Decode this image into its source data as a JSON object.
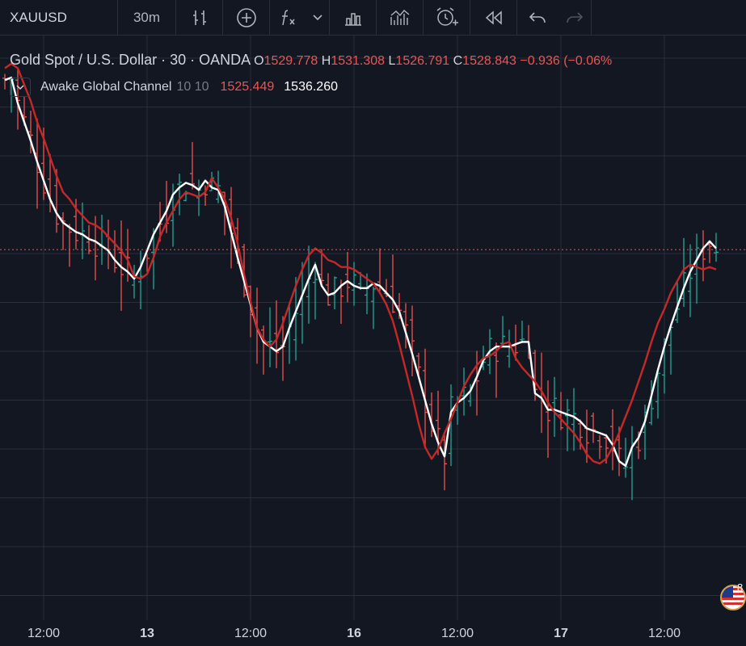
{
  "toolbar": {
    "symbol": "XAUUSD",
    "interval": "30m"
  },
  "legend": {
    "title": "Gold Spot / U.S. Dollar · 30 · OANDA",
    "o_label": "O",
    "o_value": "1529.778",
    "h_label": "H",
    "h_value": "1531.308",
    "l_label": "L",
    "l_value": "1526.791",
    "c_label": "C",
    "c_value": "1528.843",
    "change": "−0.936 (−0.06%"
  },
  "indicator": {
    "name": "Awake Global Channel",
    "params": "10 10",
    "low_value": "1525.449",
    "high_value": "1536.260"
  },
  "flag_badge": "8",
  "colors": {
    "background": "#131722",
    "grid": "#2a2e39",
    "up": "#26a69a",
    "down": "#ef5350",
    "channel": "#c62828",
    "mid": "#ffffff"
  },
  "chart_data": {
    "type": "line",
    "title": "Gold Spot / U.S. Dollar · 30 · OANDA",
    "xlabel": "",
    "ylabel": "",
    "x_ticks": [
      "12:00",
      "13",
      "12:00",
      "16",
      "12:00",
      "17",
      "12:00"
    ],
    "x_tick_index": [
      6,
      22,
      38,
      54,
      70,
      86,
      102
    ],
    "last_close": 1528.843,
    "y_range": [
      1513.0,
      1538.0
    ],
    "grid": true,
    "bar_count": 111,
    "series": [
      {
        "name": "Awake Global Channel",
        "role": "mid",
        "values": [
          1536.1,
          1536.2,
          1535.1,
          1534.3,
          1533.5,
          1532.6,
          1531.8,
          1531.0,
          1530.4,
          1530.0,
          1529.8,
          1529.6,
          1529.5,
          1529.3,
          1529.2,
          1529.0,
          1528.8,
          1528.4,
          1528.1,
          1527.9,
          1527.6,
          1528.1,
          1528.8,
          1529.5,
          1530.0,
          1530.5,
          1531.2,
          1531.5,
          1531.7,
          1531.6,
          1531.4,
          1531.8,
          1531.5,
          1531.4,
          1530.7,
          1529.6,
          1528.5,
          1527.5,
          1526.5,
          1525.5,
          1524.9,
          1524.7,
          1524.5,
          1524.7,
          1525.5,
          1526.2,
          1526.9,
          1527.6,
          1528.2,
          1527.3,
          1526.9,
          1527.0,
          1527.3,
          1527.5,
          1527.3,
          1527.2,
          1527.2,
          1527.4,
          1527.3,
          1527.0,
          1526.7,
          1526.2,
          1525.3,
          1524.4,
          1523.4,
          1522.4,
          1521.4,
          1520.6,
          1520.0,
          1521.9,
          1522.3,
          1522.5,
          1522.8,
          1523.4,
          1524.1,
          1524.5,
          1524.7,
          1524.7,
          1524.7,
          1524.8,
          1524.9,
          1524.9,
          1522.7,
          1522.5,
          1522.0,
          1522.0,
          1521.9,
          1521.8,
          1521.7,
          1521.5,
          1521.2,
          1521.1,
          1521.0,
          1520.9,
          1520.5,
          1519.8,
          1519.6,
          1520.4,
          1520.8,
          1521.5,
          1522.6,
          1523.7,
          1524.7,
          1525.6,
          1526.4,
          1527.2,
          1527.9,
          1528.4,
          1528.9,
          1529.2,
          1528.9
        ]
      },
      {
        "name": "Awake Global Channel",
        "role": "high",
        "values": [
          1536.6,
          1536.8,
          1536.6,
          1535.9,
          1535.2,
          1534.3,
          1533.6,
          1532.8,
          1532.0,
          1531.3,
          1531.0,
          1530.6,
          1530.3,
          1530.0,
          1529.9,
          1529.7,
          1529.4,
          1529.1,
          1528.8,
          1528.4,
          1527.7,
          1527.6,
          1527.8,
          1528.5,
          1529.4,
          1530.0,
          1530.5,
          1531.0,
          1531.3,
          1531.2,
          1531.1,
          1531.3,
          1531.9,
          1531.5,
          1531.0,
          1530.2,
          1529.1,
          1527.8,
          1526.6,
          1525.5,
          1525.0,
          1524.7,
          1525.0,
          1525.7,
          1526.5,
          1527.3,
          1528.0,
          1528.6,
          1528.9,
          1528.7,
          1528.4,
          1528.3,
          1528.1,
          1528.1,
          1528.0,
          1527.8,
          1527.6,
          1527.4,
          1527.0,
          1526.5,
          1525.8,
          1524.8,
          1523.7,
          1522.6,
          1521.4,
          1520.4,
          1519.9,
          1520.3,
          1521.0,
          1521.6,
          1522.3,
          1523.0,
          1523.5,
          1523.9,
          1524.2,
          1524.3,
          1524.5,
          1524.8,
          1524.9,
          1524.2,
          1523.8,
          1523.5,
          1523.2,
          1522.8,
          1522.3,
          1521.9,
          1521.6,
          1521.3,
          1521.0,
          1520.6,
          1520.1,
          1519.8,
          1519.7,
          1519.9,
          1520.4,
          1521.0,
          1521.7,
          1522.4,
          1523.2,
          1524.0,
          1524.9,
          1525.7,
          1526.3,
          1527.0,
          1527.5,
          1528.0,
          1528.2,
          1528.1,
          1528.0,
          1528.1,
          1528.0
        ]
      }
    ]
  }
}
